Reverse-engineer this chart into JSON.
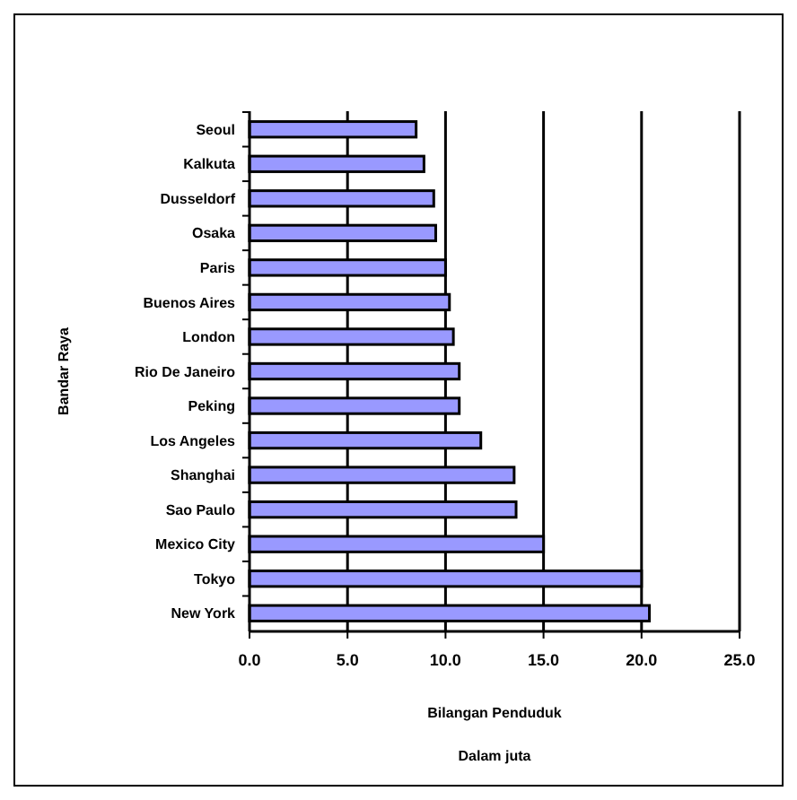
{
  "chart_data": {
    "type": "bar",
    "orientation": "horizontal",
    "xlabel": "Bilangan Penduduk",
    "ylabel": "Bandar Raya",
    "annotations": [
      "Dalam juta"
    ],
    "categories": [
      "Seoul",
      "Kalkuta",
      "Dusseldorf",
      "Osaka",
      "Paris",
      "Buenos Aires",
      "London",
      "Rio De Janeiro",
      "Peking",
      "Los Angeles",
      "Shanghai",
      "Sao Paulo",
      "Mexico City",
      "Tokyo",
      "New York"
    ],
    "values": [
      8.5,
      8.9,
      9.4,
      9.5,
      10.0,
      10.2,
      10.4,
      10.7,
      10.7,
      11.8,
      13.5,
      13.6,
      15.0,
      20.0,
      20.4
    ],
    "color": "#9999ff",
    "xlim": [
      0,
      25
    ],
    "xticks": [
      {
        "value": 0,
        "label": "0.0"
      },
      {
        "value": 5,
        "label": "5.0"
      },
      {
        "value": 10,
        "label": "10.0"
      },
      {
        "value": 15,
        "label": "15.0"
      },
      {
        "value": 20,
        "label": "20.0"
      },
      {
        "value": 25,
        "label": "25.0"
      }
    ],
    "grid": "x"
  }
}
